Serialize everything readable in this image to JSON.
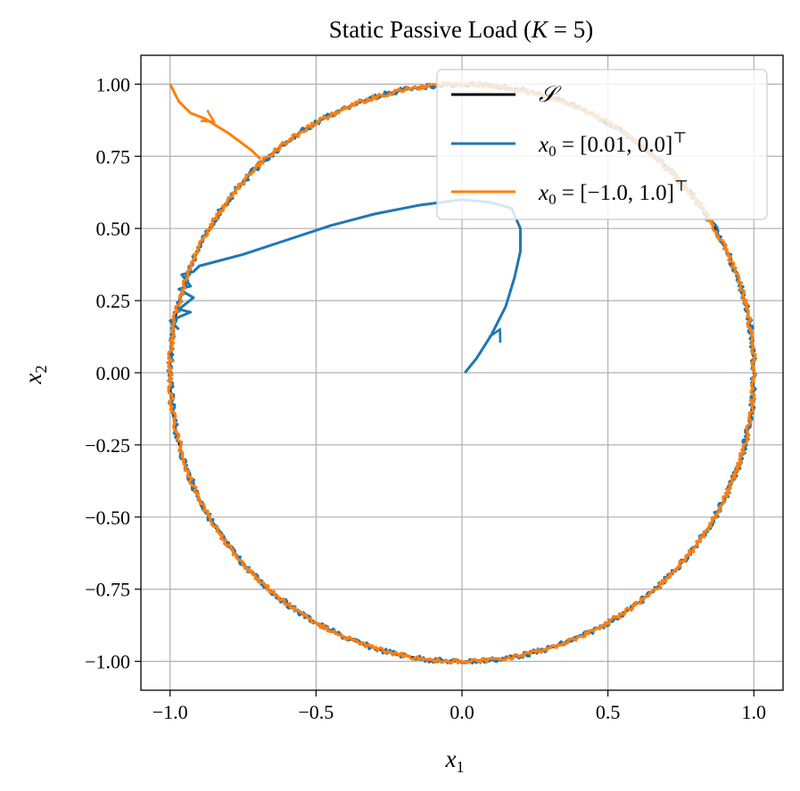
{
  "chart_data": {
    "type": "line",
    "title": "Static Passive Load (K = 5)",
    "title_parts": {
      "prefix": "Static Passive Load (",
      "var": "K",
      "suffix": " = 5)"
    },
    "xlabel": "x",
    "xlabel_sub": "1",
    "ylabel": "x",
    "ylabel_sub": "2",
    "xlim": [
      -1.1,
      1.1
    ],
    "ylim": [
      -1.1,
      1.1
    ],
    "grid": true,
    "legend_position": "top-right",
    "x_ticks": [
      -1.0,
      -0.5,
      0.0,
      0.5,
      1.0
    ],
    "x_tick_labels": [
      "−1.0",
      "−0.5",
      "0.0",
      "0.5",
      "1.0"
    ],
    "y_ticks": [
      1.0,
      0.75,
      0.5,
      0.25,
      0.0,
      -0.25,
      -0.5,
      -0.75,
      -1.0
    ],
    "y_tick_labels": [
      "1.00",
      "0.75",
      "0.50",
      "0.25",
      "0.00",
      "−0.25",
      "−0.50",
      "−0.75",
      "−1.00"
    ],
    "legend": [
      {
        "name": "S",
        "label": "𝒮",
        "color": "#000000"
      },
      {
        "name": "x0_a",
        "label": "x₀ = [0.01, 0.0]ᵀ",
        "label_parts": [
          "x",
          "0",
          " = [0.01, 0.0]",
          "⊤"
        ],
        "color": "#1f77b4"
      },
      {
        "name": "x0_b",
        "label": "x₀ = [−1.0, 1.0]ᵀ",
        "label_parts": [
          "x",
          "0",
          " = [−1.0, 1.0]",
          "⊤"
        ],
        "color": "#ff7f0e"
      }
    ],
    "series": [
      {
        "name": "S",
        "kind": "unit_circle",
        "radius": 1.0,
        "color": "#000000"
      },
      {
        "name": "x0_a",
        "color": "#1f77b4",
        "x": [
          0.01,
          0.05,
          0.1,
          0.15,
          0.18,
          0.2,
          0.2,
          0.17,
          0.1,
          0.0,
          -0.15,
          -0.3,
          -0.45,
          -0.6,
          -0.75,
          -0.9,
          -0.92,
          -0.96,
          -0.93,
          -0.97,
          -0.92,
          -0.97,
          -0.93,
          -1.0,
          -0.97
        ],
        "y": [
          0.0,
          0.05,
          0.13,
          0.23,
          0.33,
          0.42,
          0.5,
          0.57,
          0.59,
          0.6,
          0.58,
          0.55,
          0.51,
          0.46,
          0.41,
          0.37,
          0.35,
          0.34,
          0.3,
          0.29,
          0.26,
          0.22,
          0.21,
          0.18,
          0.15
        ],
        "arrow": {
          "x": 0.13,
          "y": 0.15
        }
      },
      {
        "name": "x0_b",
        "color": "#ff7f0e",
        "x": [
          -1.0,
          -0.97,
          -0.93,
          -0.88,
          -0.8,
          -0.72,
          -0.69
        ],
        "y": [
          1.0,
          0.94,
          0.9,
          0.88,
          0.83,
          0.77,
          0.74
        ],
        "arrow": {
          "x": -0.85,
          "y": 0.87
        }
      }
    ]
  }
}
